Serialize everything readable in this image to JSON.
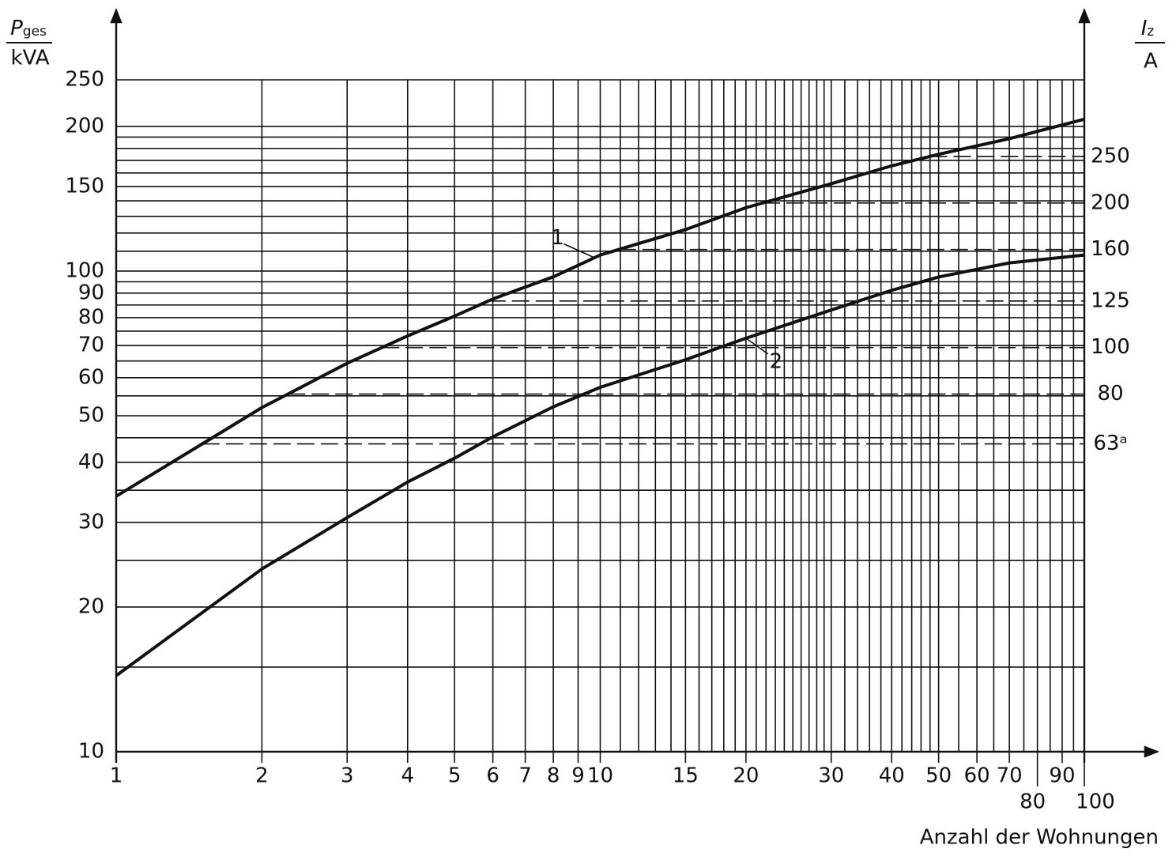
{
  "chart_data": {
    "type": "line",
    "xscale": "log",
    "yscale": "log",
    "y2scale": "log",
    "xlabel": "Anzahl der Wohnungen",
    "ylabel_symbol": "P",
    "ylabel_subscript": "ges",
    "ylabel_unit": "kVA",
    "y2label_symbol": "I",
    "y2label_subscript": "z",
    "y2label_unit": "A",
    "xlim": [
      1,
      100
    ],
    "xticks": [
      1,
      2,
      3,
      4,
      5,
      6,
      7,
      8,
      9,
      10,
      15,
      20,
      30,
      40,
      50,
      60,
      70,
      80,
      90,
      100
    ],
    "ylim": [
      10,
      250
    ],
    "yticks": [
      10,
      20,
      30,
      40,
      50,
      60,
      70,
      80,
      90,
      100,
      150,
      200,
      250
    ],
    "y2lim": [
      14.4,
      361
    ],
    "y2ticks": [
      63,
      80,
      100,
      125,
      160,
      200,
      250
    ],
    "y2tick_labels": [
      "63ᵃ",
      "80",
      "100",
      "125",
      "160",
      "200",
      "250"
    ],
    "xgrid_lines": [
      1,
      2,
      3,
      4,
      5,
      6,
      7,
      8,
      9,
      10,
      11,
      12,
      13,
      14,
      15,
      16,
      17,
      18,
      19,
      20,
      21,
      22,
      23,
      24,
      25,
      26,
      27,
      28,
      29,
      30,
      32,
      34,
      36,
      38,
      40,
      42,
      44,
      46,
      48,
      50,
      55,
      60,
      65,
      70,
      75,
      80,
      85,
      90,
      95,
      100
    ],
    "ygrid_lines": [
      10,
      15,
      20,
      25,
      30,
      35,
      40,
      45,
      50,
      55,
      60,
      65,
      70,
      75,
      80,
      85,
      90,
      95,
      100,
      110,
      120,
      130,
      140,
      150,
      160,
      170,
      180,
      190,
      200,
      250
    ],
    "x": [
      1,
      2,
      3,
      4,
      5,
      6,
      8,
      10,
      15,
      20,
      30,
      40,
      50,
      70,
      100
    ],
    "series": [
      {
        "name": "1",
        "color": "#111111",
        "values": [
          34,
          52,
          64.3,
          73.3,
          80.6,
          87.5,
          97.3,
          108,
          122,
          135.5,
          152,
          165.6,
          175,
          188.6,
          207
        ]
      },
      {
        "name": "2",
        "color": "#111111",
        "values": [
          14.4,
          24,
          30.7,
          36.4,
          40.8,
          45.2,
          52.2,
          57.3,
          65.4,
          72.5,
          83,
          91.2,
          97.2,
          104,
          108
        ]
      }
    ],
    "grid": true
  }
}
